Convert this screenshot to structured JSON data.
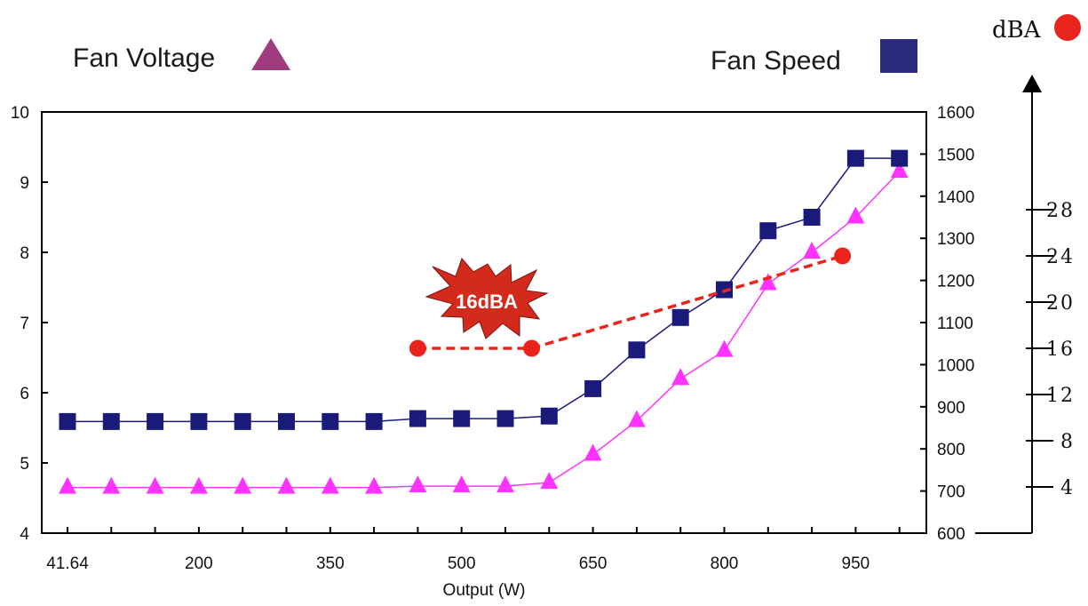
{
  "legend": {
    "fan_voltage_label": "Fan Voltage",
    "fan_speed_label": "Fan Speed",
    "dba_label": "dBA"
  },
  "burst_label": "16dBA",
  "colors": {
    "voltage_line": "#ff33ff",
    "voltage_legend": "#9e3c7e",
    "speed": "#1a1a7a",
    "speed_legend": "#2b2b7e",
    "dba": "#e8241c",
    "burst": "#d42a1c",
    "gridline": "#ffff99"
  },
  "chart_data": {
    "type": "line",
    "xlabel": "Output (W)",
    "x": [
      41.64,
      100,
      150,
      200,
      250,
      300,
      350,
      400,
      450,
      500,
      550,
      600,
      650,
      700,
      750,
      800,
      850,
      900,
      950,
      1000
    ],
    "x_tick_labels": [
      "41.64",
      "200",
      "350",
      "500",
      "650",
      "800",
      "950"
    ],
    "y_left": {
      "range": [
        4,
        10
      ],
      "ticks": [
        "4",
        "5",
        "6",
        "7",
        "8",
        "9",
        "10"
      ]
    },
    "y_right": {
      "range": [
        600,
        1600
      ],
      "ticks": [
        "600",
        "700",
        "800",
        "900",
        "1000",
        "1100",
        "1200",
        "1300",
        "1400",
        "1500",
        "1600"
      ]
    },
    "y_dba": {
      "ticks": [
        "4",
        "8",
        "12",
        "16",
        "20",
        "24",
        "28"
      ]
    },
    "series": [
      {
        "name": "Fan Voltage",
        "axis": "left",
        "marker": "triangle",
        "values": [
          4.65,
          4.65,
          4.65,
          4.65,
          4.65,
          4.65,
          4.65,
          4.65,
          4.67,
          4.67,
          4.67,
          4.72,
          5.12,
          5.6,
          6.2,
          6.6,
          7.55,
          8.0,
          8.5,
          9.15
        ]
      },
      {
        "name": "Fan Speed",
        "axis": "right",
        "marker": "square",
        "values": [
          865,
          865,
          865,
          865,
          865,
          865,
          865,
          865,
          872,
          872,
          872,
          878,
          943,
          1035,
          1112,
          1178,
          1318,
          1350,
          1490,
          1490
        ]
      },
      {
        "name": "dBA",
        "axis": "dba",
        "marker": "circle",
        "dashed_segments": true,
        "points": [
          {
            "x": 450,
            "y": 16
          },
          {
            "x": 580,
            "y": 16
          },
          {
            "x": 935,
            "y": 24
          }
        ]
      }
    ]
  }
}
